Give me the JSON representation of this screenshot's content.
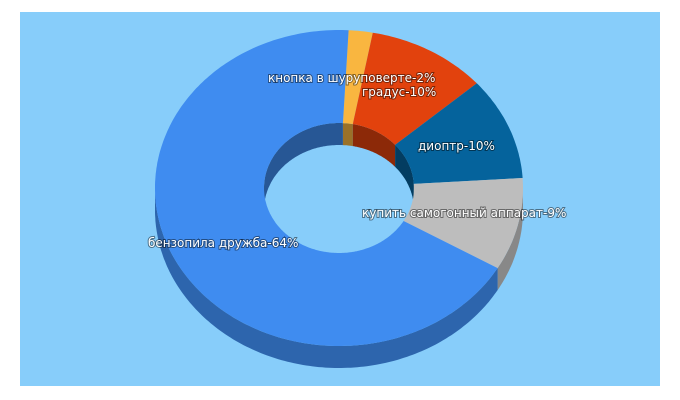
{
  "chart_data": {
    "type": "donut3d",
    "categories": [
      "кнопка в шуруповерте",
      "градус",
      "диоптр",
      "купить самогонный аппарат",
      "бензопила дружба"
    ],
    "values": [
      2,
      10,
      10,
      9,
      64
    ],
    "value_labels": [
      "-2%",
      "-10%",
      "-10%",
      "-9%",
      "-64%"
    ],
    "colors": [
      "#f9b640",
      "#e2420d",
      "#05639c",
      "#bdbdbd",
      "#3f8cf0"
    ]
  }
}
